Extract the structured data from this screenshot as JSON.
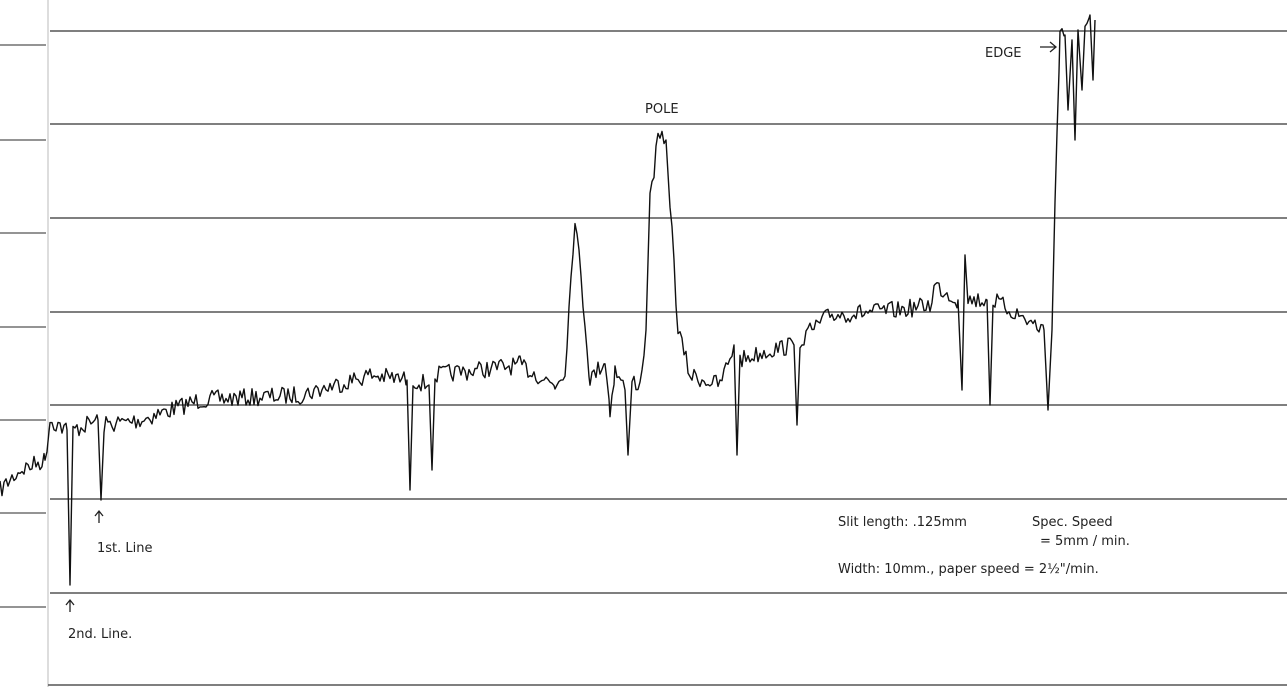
{
  "annotations": {
    "edge": "EDGE",
    "pole": "POLE",
    "first_line": "1st. Line",
    "second_line": "2nd. Line.",
    "slit_length": "Slit length: .125mm",
    "spec_speed": "Spec. Speed",
    "spec_speed_value": "= 5mm / min.",
    "width": "Width: 10mm., paper speed = 2½\"/min."
  }
}
